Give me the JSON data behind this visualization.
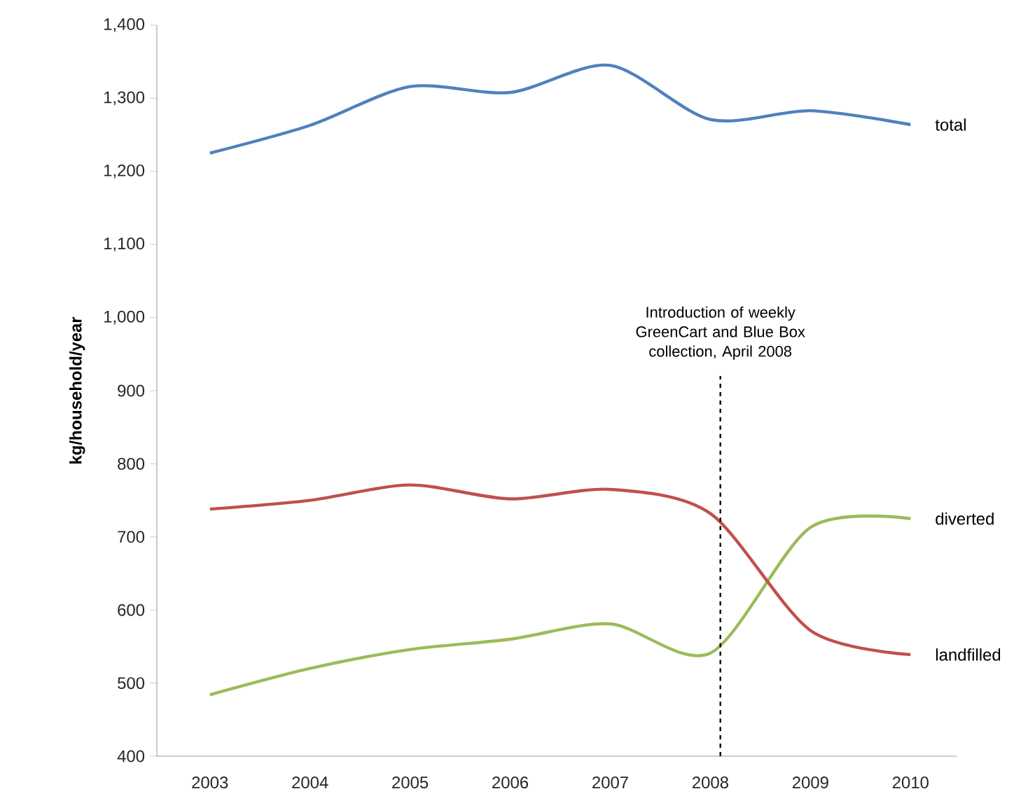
{
  "chart_data": {
    "type": "line",
    "ylabel": "kg/household/year",
    "x": [
      2003,
      2004,
      2005,
      2006,
      2007,
      2008,
      2009,
      2010
    ],
    "xlim": [
      2002.47,
      2010.46
    ],
    "xticks": [
      2003,
      2004,
      2005,
      2006,
      2007,
      2008,
      2009,
      2010
    ],
    "ylim": [
      400,
      1400
    ],
    "yticks": [
      {
        "value": 400,
        "label": "400"
      },
      {
        "value": 500,
        "label": "500"
      },
      {
        "value": 600,
        "label": "600"
      },
      {
        "value": 700,
        "label": "700"
      },
      {
        "value": 800,
        "label": "800"
      },
      {
        "value": 900,
        "label": "900"
      },
      {
        "value": 1000,
        "label": "1,000"
      },
      {
        "value": 1100,
        "label": "1,100"
      },
      {
        "value": 1200,
        "label": "1,200"
      },
      {
        "value": 1300,
        "label": "1,300"
      },
      {
        "value": 1400,
        "label": "1,400"
      }
    ],
    "series": [
      {
        "name": "total",
        "color": "#4f81bd",
        "values": [
          1225,
          1263,
          1316,
          1308,
          1345,
          1271,
          1283,
          1264
        ]
      },
      {
        "name": "diverted",
        "color": "#9bbb59",
        "values": [
          484,
          520,
          546,
          560,
          581,
          541,
          713,
          725
        ]
      },
      {
        "name": "landfilled",
        "color": "#c0504d",
        "values": [
          738,
          750,
          771,
          752,
          765,
          732,
          572,
          539
        ]
      }
    ],
    "ref_lines": [
      {
        "axis": "x",
        "value": 2008.1,
        "label": "Introduction of weekly GreenCart and Blue Box collection, April 2008",
        "line_style": "dashed",
        "color": "#000000"
      }
    ]
  }
}
